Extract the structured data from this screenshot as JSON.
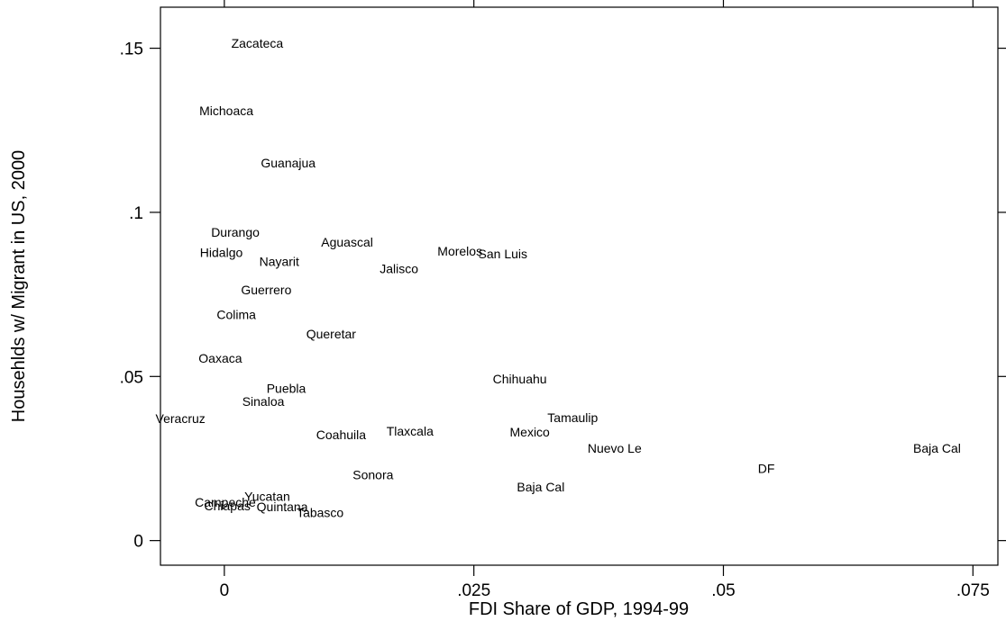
{
  "chart_data": {
    "type": "scatter",
    "title": "",
    "xlabel": "FDI Share of GDP, 1994-99",
    "ylabel": "Househlds w/ Migrant in US, 2000",
    "xlim": [
      -0.0064,
      0.0775
    ],
    "ylim": [
      -0.0075,
      0.1625
    ],
    "xticks": [
      0,
      0.025,
      0.05,
      0.075
    ],
    "xtick_labels": [
      "0",
      ".025",
      ".05",
      ".075"
    ],
    "yticks": [
      0,
      0.05,
      0.1,
      0.15
    ],
    "ytick_labels": [
      "0",
      ".05",
      ".1",
      ".15"
    ],
    "grid": false,
    "legend": "none",
    "marker": "label-only",
    "points": [
      {
        "label": "Zacateca",
        "x": 0.0033,
        "y": 0.1516
      },
      {
        "label": "Michoaca",
        "x": 0.0002,
        "y": 0.131
      },
      {
        "label": "Guanajua",
        "x": 0.0064,
        "y": 0.115
      },
      {
        "label": "Durango",
        "x": 0.0011,
        "y": 0.094
      },
      {
        "label": "Hidalgo",
        "x": -0.0003,
        "y": 0.0878
      },
      {
        "label": "Nayarit",
        "x": 0.0055,
        "y": 0.0851
      },
      {
        "label": "Aguascal",
        "x": 0.0123,
        "y": 0.091
      },
      {
        "label": "Jalisco",
        "x": 0.0175,
        "y": 0.0828
      },
      {
        "label": "Morelos",
        "x": 0.0236,
        "y": 0.0882
      },
      {
        "label": "San Luis",
        "x": 0.0279,
        "y": 0.0874
      },
      {
        "label": "Guerrero",
        "x": 0.0042,
        "y": 0.0764
      },
      {
        "label": "Colima",
        "x": 0.0012,
        "y": 0.0688
      },
      {
        "label": "Queretar",
        "x": 0.0107,
        "y": 0.063
      },
      {
        "label": "Oaxaca",
        "x": -0.0004,
        "y": 0.0556
      },
      {
        "label": "Chihuahu",
        "x": 0.0296,
        "y": 0.0493
      },
      {
        "label": "Puebla",
        "x": 0.0062,
        "y": 0.0464
      },
      {
        "label": "Sinaloa",
        "x": 0.0039,
        "y": 0.0424
      },
      {
        "label": "Veracruz",
        "x": -0.0044,
        "y": 0.0372
      },
      {
        "label": "Tamaulip",
        "x": 0.0349,
        "y": 0.0374
      },
      {
        "label": "Coahuila",
        "x": 0.0117,
        "y": 0.0322
      },
      {
        "label": "Tlaxcala",
        "x": 0.0186,
        "y": 0.0334
      },
      {
        "label": "Mexico",
        "x": 0.0306,
        "y": 0.0331
      },
      {
        "label": "Nuevo Le",
        "x": 0.0391,
        "y": 0.0282
      },
      {
        "label": "Baja Cal",
        "x": 0.0714,
        "y": 0.0282
      },
      {
        "label": "DF",
        "x": 0.0543,
        "y": 0.022
      },
      {
        "label": "Sonora",
        "x": 0.0149,
        "y": 0.02
      },
      {
        "label": "Baja Cal",
        "x": 0.0317,
        "y": 0.0164
      },
      {
        "label": "Yucatan",
        "x": 0.0043,
        "y": 0.0135
      },
      {
        "label": "Campeche",
        "x": 0.0001,
        "y": 0.0117
      },
      {
        "label": "Chiapas",
        "x": 0.0003,
        "y": 0.0106
      },
      {
        "label": "Quintana",
        "x": 0.0058,
        "y": 0.0103
      },
      {
        "label": "Tabasco",
        "x": 0.0096,
        "y": 0.0085
      }
    ]
  }
}
